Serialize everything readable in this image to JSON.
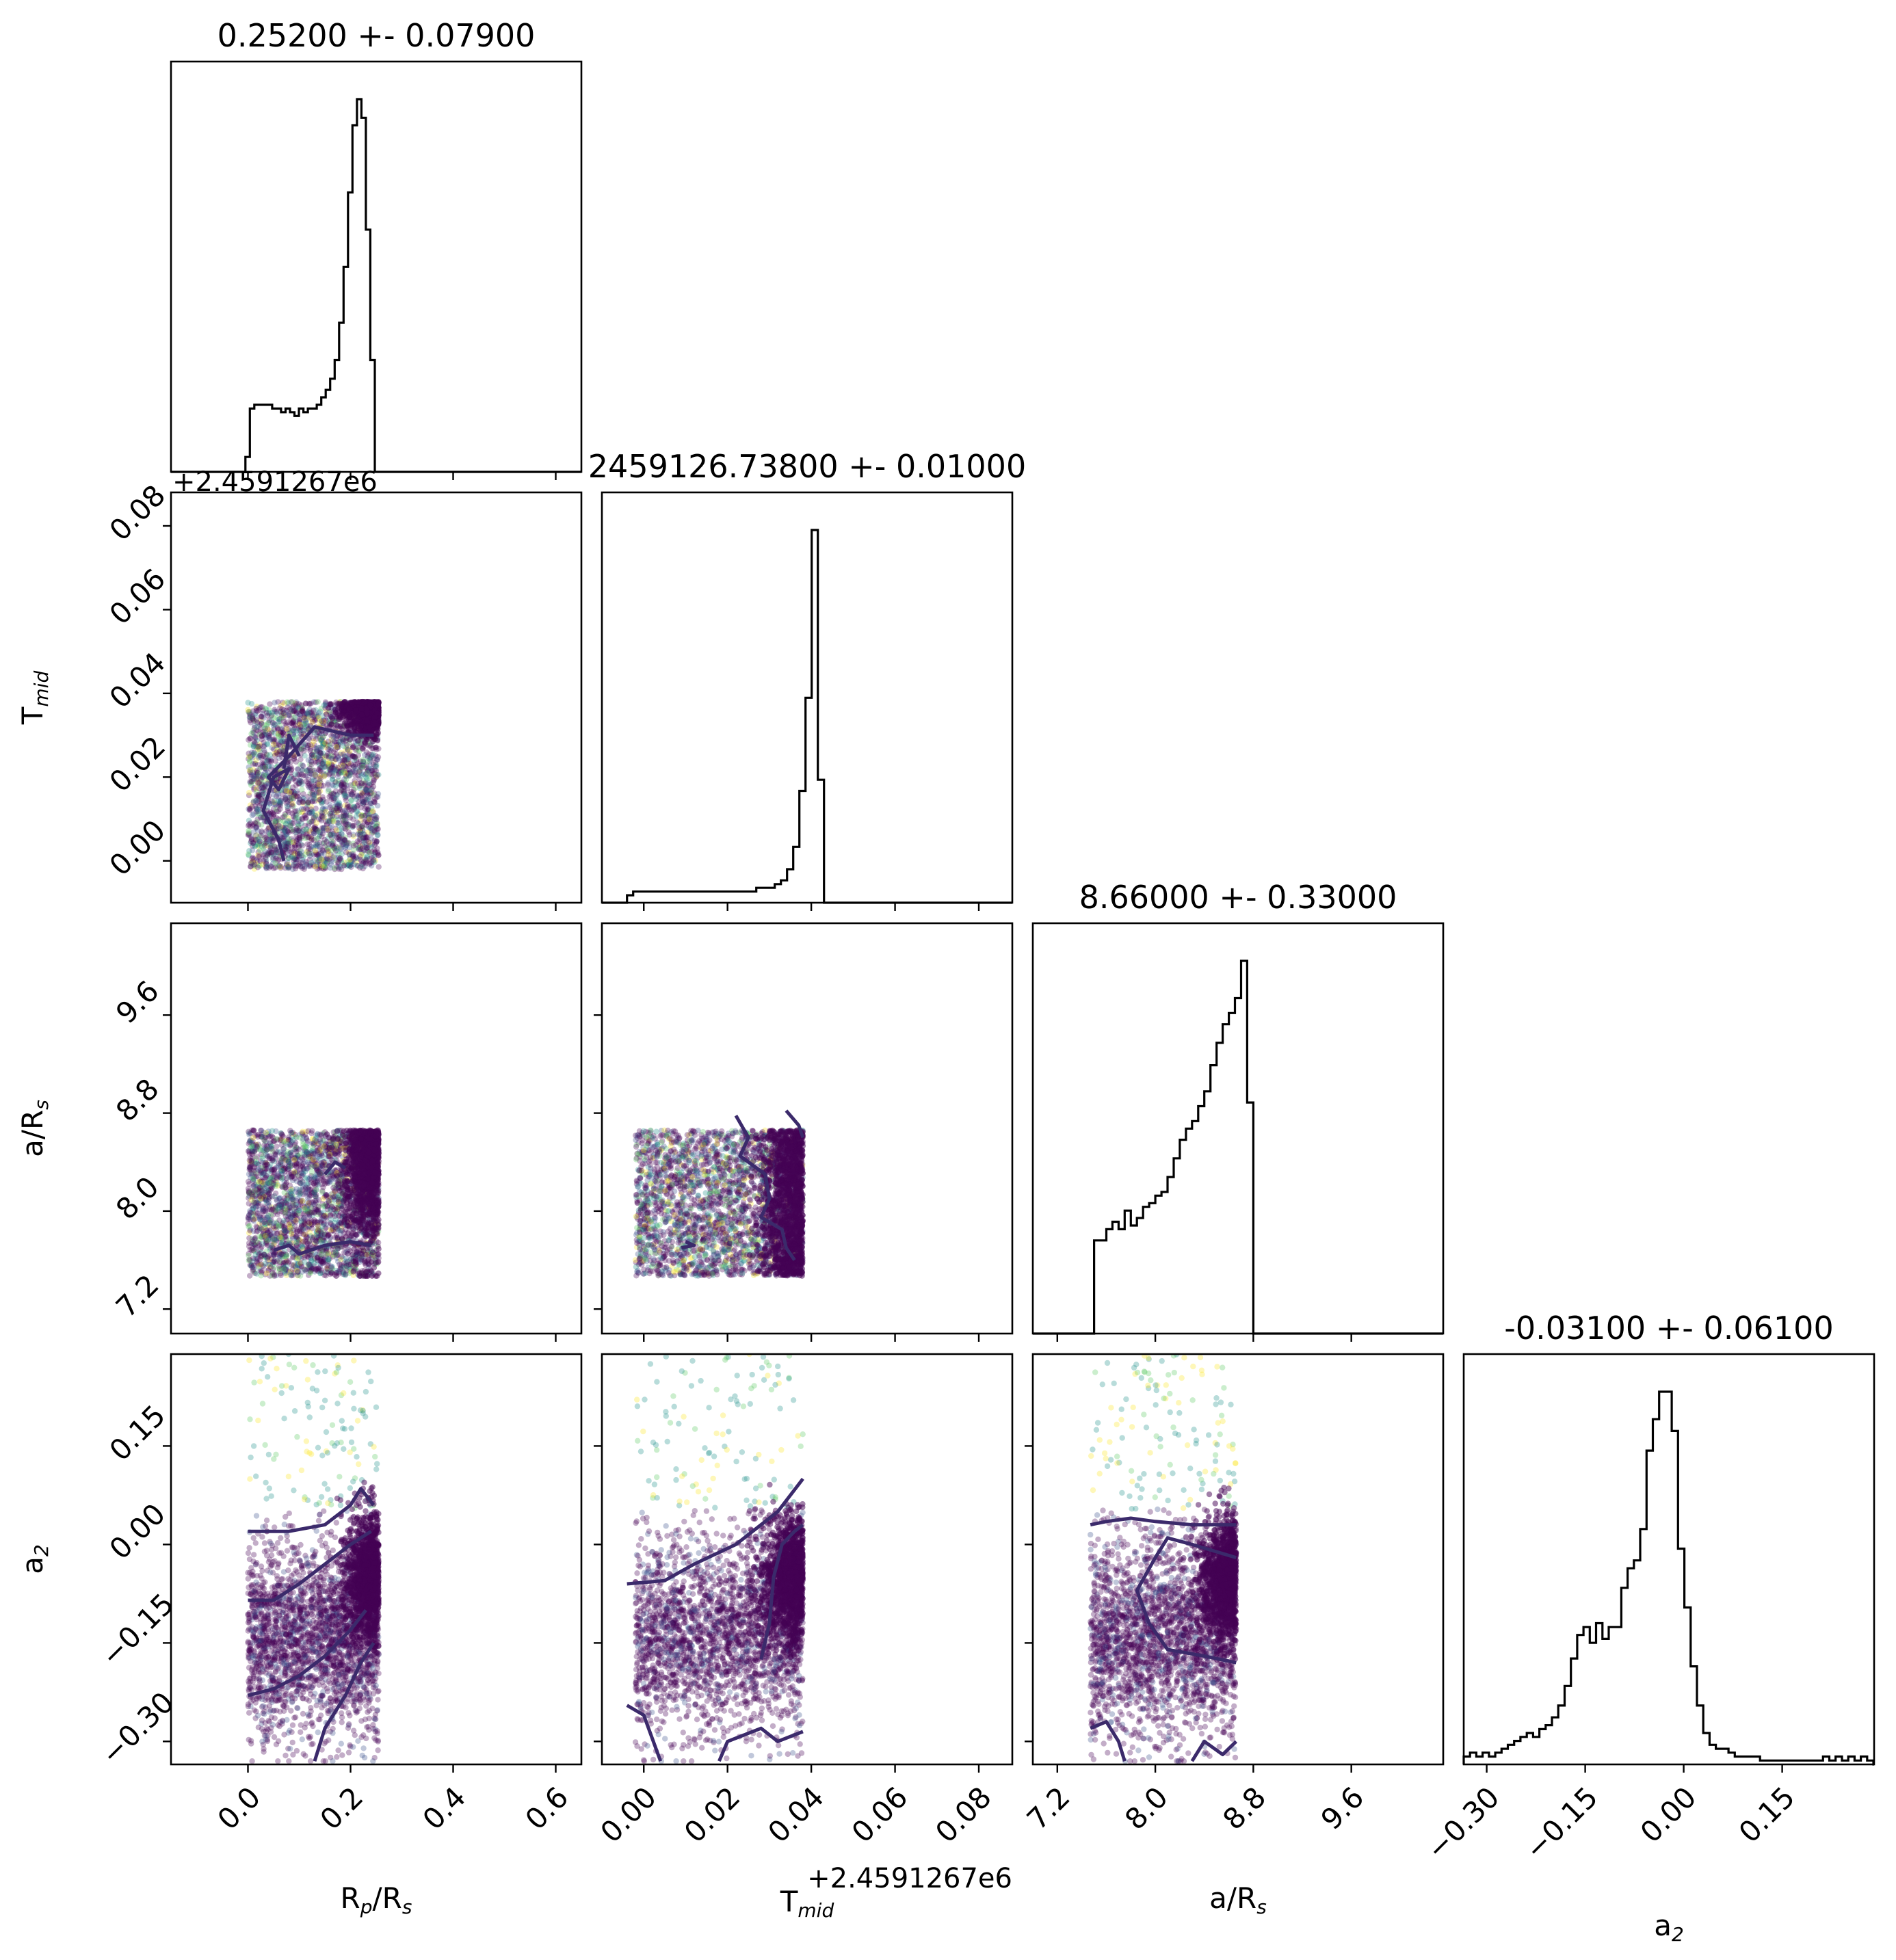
{
  "figure": {
    "type": "corner-plot",
    "colors": {
      "hist": "#000000",
      "contour": "#3b2a6b",
      "point_dense": "#440154",
      "point_sparse_palette": [
        "#440154",
        "#3b528b",
        "#21918c",
        "#5ec962",
        "#fde725"
      ],
      "axes": "#000000",
      "background": "#ffffff"
    }
  },
  "chart_data": {
    "type": "corner",
    "parameters": [
      {
        "key": "rprs",
        "label_main": "R",
        "label_sub1": "p",
        "label_mid": "/R",
        "label_sub2": "s",
        "range": [
          -0.15,
          0.65
        ],
        "ticks": [
          "0.0",
          "0.2",
          "0.4",
          "0.6"
        ],
        "tick_values": [
          0.0,
          0.2,
          0.4,
          0.6
        ]
      },
      {
        "key": "tmid",
        "label_main": "T",
        "label_sub1": "mid",
        "label_mid": "",
        "label_sub2": "",
        "offset_label": "+2.4591267e6",
        "range": [
          -0.01,
          0.088
        ],
        "ticks": [
          "0.00",
          "0.02",
          "0.04",
          "0.06",
          "0.08"
        ],
        "tick_values": [
          0.0,
          0.02,
          0.04,
          0.06,
          0.08
        ]
      },
      {
        "key": "ars",
        "label_main": "a/R",
        "label_sub1": "s",
        "label_mid": "",
        "label_sub2": "",
        "range": [
          7.0,
          10.35
        ],
        "ticks": [
          "7.2",
          "8.0",
          "8.8",
          "9.6"
        ],
        "tick_values": [
          7.2,
          8.0,
          8.8,
          9.6
        ]
      },
      {
        "key": "a2",
        "label_main": "a",
        "label_sub1": "2",
        "label_mid": "",
        "label_sub2": "",
        "range": [
          -0.335,
          0.29
        ],
        "ticks": [
          "−0.30",
          "−0.15",
          "0.00",
          "0.15"
        ],
        "tick_values": [
          -0.3,
          -0.15,
          0.0,
          0.15
        ]
      }
    ],
    "titles": [
      "0.25200 +- 0.07900",
      "2459126.73800 +- 0.01000",
      "8.66000 +- 0.33000",
      "-0.03100 +- 0.06100"
    ],
    "histograms": [
      {
        "edges_start": -0.005,
        "edges_step": 0.0087,
        "counts": [
          0.04,
          0.17,
          0.18,
          0.18,
          0.18,
          0.18,
          0.17,
          0.17,
          0.16,
          0.17,
          0.16,
          0.15,
          0.17,
          0.16,
          0.17,
          0.17,
          0.18,
          0.2,
          0.22,
          0.25,
          0.3,
          0.4,
          0.55,
          0.75,
          0.93,
          1.0,
          0.95,
          0.65,
          0.3,
          0.0,
          0.0
        ]
      },
      {
        "edges_start": -0.004,
        "edges_step": 0.00147,
        "counts": [
          0.02,
          0.03,
          0.03,
          0.03,
          0.03,
          0.03,
          0.03,
          0.03,
          0.03,
          0.03,
          0.03,
          0.03,
          0.03,
          0.03,
          0.03,
          0.03,
          0.03,
          0.03,
          0.03,
          0.03,
          0.03,
          0.04,
          0.04,
          0.04,
          0.05,
          0.06,
          0.09,
          0.15,
          0.3,
          0.55,
          1.0,
          0.33,
          0.0
        ]
      },
      {
        "edges_start": 7.45,
        "edges_step": 0.05,
        "counts": [
          0.0,
          0.25,
          0.25,
          0.28,
          0.3,
          0.28,
          0.33,
          0.29,
          0.31,
          0.34,
          0.35,
          0.37,
          0.38,
          0.42,
          0.47,
          0.52,
          0.55,
          0.57,
          0.61,
          0.65,
          0.72,
          0.78,
          0.83,
          0.86,
          0.9,
          1.0,
          0.62,
          0.0
        ]
      },
      {
        "edges_start": -0.335,
        "edges_step": 0.0096,
        "counts": [
          0.02,
          0.03,
          0.02,
          0.03,
          0.02,
          0.03,
          0.04,
          0.05,
          0.06,
          0.07,
          0.08,
          0.07,
          0.09,
          0.1,
          0.12,
          0.15,
          0.2,
          0.27,
          0.33,
          0.35,
          0.31,
          0.36,
          0.32,
          0.35,
          0.35,
          0.45,
          0.5,
          0.52,
          0.6,
          0.8,
          0.88,
          0.95,
          0.95,
          0.85,
          0.55,
          0.4,
          0.25,
          0.15,
          0.08,
          0.05,
          0.04,
          0.04,
          0.03,
          0.02,
          0.02,
          0.02,
          0.02,
          0.01,
          0.01,
          0.01,
          0.01,
          0.01,
          0.01,
          0.01,
          0.01,
          0.01,
          0.01,
          0.02,
          0.01,
          0.02,
          0.01,
          0.02,
          0.01,
          0.02,
          0.01
        ]
      }
    ],
    "scatter_bounds": {
      "rprs": [
        0.0,
        0.255
      ],
      "tmid": [
        -0.002,
        0.038
      ],
      "ars": [
        7.47,
        8.66
      ],
      "a2": [
        -0.33,
        0.29
      ]
    },
    "density_centers": {
      "rprs": 0.24,
      "tmid": 0.036,
      "ars": 8.6,
      "a2": -0.05
    },
    "contours": {
      "1_0": [
        [
          [
            0.07,
            -0.0
          ],
          [
            0.06,
            0.005
          ],
          [
            0.03,
            0.012
          ],
          [
            0.05,
            0.02
          ],
          [
            0.08,
            0.022
          ],
          [
            0.06,
            0.017
          ],
          [
            0.04,
            0.02
          ],
          [
            0.08,
            0.025
          ],
          [
            0.13,
            0.032
          ],
          [
            0.2,
            0.03
          ],
          [
            0.245,
            0.03
          ]
        ],
        [
          [
            0.1,
            0.025
          ],
          [
            0.08,
            0.03
          ],
          [
            0.07,
            0.022
          ]
        ]
      ],
      "2_0": [
        [
          [
            0.05,
            7.68
          ],
          [
            0.08,
            7.72
          ],
          [
            0.1,
            7.65
          ],
          [
            0.15,
            7.72
          ],
          [
            0.2,
            7.75
          ],
          [
            0.24,
            7.72
          ]
        ],
        [
          [
            0.15,
            8.3
          ],
          [
            0.17,
            8.4
          ],
          [
            0.19,
            8.35
          ]
        ]
      ],
      "2_1": [
        [
          [
            0.022,
            8.78
          ],
          [
            0.025,
            8.6
          ],
          [
            0.023,
            8.45
          ],
          [
            0.029,
            8.3
          ],
          [
            0.03,
            8.1
          ],
          [
            0.028,
            7.95
          ],
          [
            0.033,
            7.85
          ],
          [
            0.034,
            7.7
          ],
          [
            0.036,
            7.6
          ]
        ],
        [
          [
            0.01,
            7.75
          ],
          [
            0.012,
            7.72
          ],
          [
            0.009,
            7.7
          ]
        ],
        [
          [
            0.034,
            8.82
          ],
          [
            0.037,
            8.7
          ],
          [
            0.038,
            8.6
          ]
        ]
      ],
      "3_0": [
        [
          [
            0.0,
            0.02
          ],
          [
            0.08,
            0.02
          ],
          [
            0.15,
            0.03
          ],
          [
            0.2,
            0.06
          ],
          [
            0.22,
            0.085
          ],
          [
            0.245,
            0.06
          ]
        ],
        [
          [
            0.0,
            -0.085
          ],
          [
            0.05,
            -0.085
          ],
          [
            0.1,
            -0.06
          ],
          [
            0.15,
            -0.03
          ],
          [
            0.2,
            0.0
          ],
          [
            0.24,
            0.02
          ]
        ],
        [
          [
            0.0,
            -0.23
          ],
          [
            0.05,
            -0.22
          ],
          [
            0.1,
            -0.2
          ],
          [
            0.15,
            -0.17
          ],
          [
            0.2,
            -0.13
          ],
          [
            0.23,
            -0.1
          ]
        ],
        [
          [
            0.13,
            -0.33
          ],
          [
            0.15,
            -0.28
          ],
          [
            0.19,
            -0.23
          ],
          [
            0.22,
            -0.18
          ],
          [
            0.245,
            -0.15
          ]
        ]
      ],
      "3_1": [
        [
          [
            -0.004,
            -0.06
          ],
          [
            0.005,
            -0.055
          ],
          [
            0.012,
            -0.03
          ],
          [
            0.022,
            0.0
          ],
          [
            0.032,
            0.05
          ],
          [
            0.038,
            0.1
          ]
        ],
        [
          [
            0.028,
            -0.175
          ],
          [
            0.03,
            -0.12
          ],
          [
            0.031,
            -0.05
          ],
          [
            0.033,
            0.0
          ],
          [
            0.036,
            0.02
          ],
          [
            0.038,
            0.03
          ]
        ],
        [
          [
            -0.004,
            -0.245
          ],
          [
            0.0,
            -0.26
          ],
          [
            0.004,
            -0.33
          ]
        ],
        [
          [
            0.018,
            -0.33
          ],
          [
            0.02,
            -0.3
          ],
          [
            0.028,
            -0.28
          ],
          [
            0.032,
            -0.3
          ],
          [
            0.038,
            -0.285
          ]
        ]
      ],
      "3_2": [
        [
          [
            7.47,
            0.03
          ],
          [
            7.6,
            0.035
          ],
          [
            7.8,
            0.04
          ],
          [
            8.0,
            0.035
          ],
          [
            8.3,
            0.03
          ],
          [
            8.66,
            0.03
          ]
        ],
        [
          [
            8.66,
            -0.18
          ],
          [
            8.4,
            -0.17
          ],
          [
            8.1,
            -0.16
          ],
          [
            7.95,
            -0.12
          ],
          [
            7.85,
            -0.07
          ],
          [
            8.0,
            -0.02
          ],
          [
            8.1,
            0.01
          ],
          [
            8.3,
            -0.0
          ],
          [
            8.66,
            -0.02
          ]
        ],
        [
          [
            7.47,
            -0.28
          ],
          [
            7.6,
            -0.27
          ],
          [
            7.7,
            -0.3
          ],
          [
            7.75,
            -0.33
          ]
        ],
        [
          [
            8.3,
            -0.33
          ],
          [
            8.4,
            -0.3
          ],
          [
            8.55,
            -0.32
          ],
          [
            8.66,
            -0.3
          ]
        ]
      ]
    }
  }
}
